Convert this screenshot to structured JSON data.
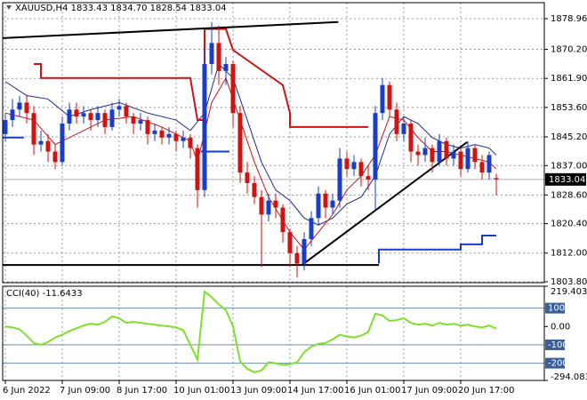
{
  "chart_data": {
    "type": "candlestick",
    "title": "XAUUSD,H4  1833.43 1834.70 1828.54 1833.04",
    "categories": [
      "6 Jun 2022",
      null,
      null,
      null,
      null,
      null,
      null,
      null,
      "7 Jun 09:00",
      null,
      null,
      null,
      null,
      null,
      null,
      null,
      "8 Jun 17:00",
      null,
      null,
      null,
      null,
      null,
      null,
      null,
      "10 Jun 01:00",
      null,
      null,
      null,
      null,
      null,
      null,
      null,
      "13 Jun 09:00",
      null,
      null,
      null,
      null,
      null,
      null,
      null,
      "14 Jun 17:00",
      null,
      null,
      null,
      null,
      null,
      null,
      null,
      "16 Jun 01:00",
      null,
      null,
      null,
      null,
      null,
      null,
      null,
      "17 Jun 09:00",
      null,
      null,
      null,
      null,
      null,
      null,
      null,
      "20 Jun 17:00",
      null,
      null,
      null,
      null,
      null
    ],
    "open": [
      1846,
      1850,
      1853,
      1855,
      1852,
      1843,
      1844,
      1841,
      1838,
      1849,
      1853,
      1851,
      1852,
      1850,
      1852,
      1848,
      1853,
      1854,
      1851,
      1849,
      1850,
      1846,
      1847,
      1845,
      1846,
      1844,
      1845,
      1842,
      1830,
      1866,
      1872,
      1864,
      1866,
      1852,
      1835,
      1832,
      1828,
      1823,
      1827,
      1825,
      1818,
      1812,
      1809,
      1816,
      1822,
      1829,
      1825,
      1827,
      1839,
      1836,
      1838,
      1834,
      1833,
      1852,
      1860,
      1853,
      1846,
      1849,
      1841,
      1840,
      1842,
      1838,
      1844,
      1839,
      1841,
      1836,
      1842,
      1838,
      1835,
      1833.43
    ],
    "high": [
      1852,
      1856,
      1857,
      1857,
      1854,
      1847,
      1846,
      1843,
      1851,
      1855,
      1855,
      1854,
      1853,
      1854,
      1853,
      1855,
      1856,
      1855,
      1852,
      1852,
      1851,
      1849,
      1848,
      1848,
      1847,
      1847,
      1846,
      1843,
      1870,
      1878,
      1877,
      1868,
      1867,
      1854,
      1838,
      1834,
      1830,
      1829,
      1829,
      1826,
      1819,
      1814,
      1818,
      1824,
      1831,
      1830,
      1829,
      1842,
      1841,
      1840,
      1839,
      1837,
      1854,
      1862,
      1861,
      1855,
      1851,
      1850,
      1843,
      1845,
      1843,
      1846,
      1845,
      1843,
      1842,
      1844,
      1843,
      1840,
      1841,
      1834.7
    ],
    "low": [
      1844,
      1848,
      1851,
      1849,
      1840,
      1841,
      1838,
      1836,
      1837,
      1847,
      1849,
      1849,
      1847,
      1848,
      1846,
      1847,
      1851,
      1849,
      1846,
      1847,
      1843,
      1844,
      1843,
      1843,
      1841,
      1842,
      1839,
      1825,
      1828,
      1863,
      1860,
      1860,
      1848,
      1832,
      1829,
      1826,
      1808,
      1821,
      1822,
      1815,
      1808,
      1805,
      1807,
      1814,
      1820,
      1822,
      1823,
      1825,
      1834,
      1834,
      1831,
      1830,
      1824,
      1850,
      1851,
      1844,
      1844,
      1838,
      1837,
      1838,
      1835,
      1837,
      1837,
      1837,
      1834,
      1835,
      1836,
      1833,
      1833,
      1828.54
    ],
    "close": [
      1850,
      1853,
      1855,
      1852,
      1843,
      1844,
      1841,
      1838,
      1849,
      1853,
      1851,
      1852,
      1850,
      1852,
      1848,
      1853,
      1854,
      1851,
      1849,
      1850,
      1846,
      1847,
      1845,
      1846,
      1844,
      1845,
      1842,
      1830,
      1866,
      1872,
      1864,
      1866,
      1852,
      1835,
      1832,
      1828,
      1823,
      1827,
      1825,
      1818,
      1812,
      1809,
      1816,
      1822,
      1829,
      1825,
      1827,
      1839,
      1836,
      1838,
      1834,
      1833,
      1852,
      1860,
      1853,
      1846,
      1849,
      1841,
      1840,
      1842,
      1838,
      1844,
      1839,
      1841,
      1836,
      1842,
      1838,
      1835,
      1840,
      1833.04
    ],
    "up_color": "#1a3cc8",
    "down_color": "#d01212",
    "ylim": [
      1803.55,
      1883.53
    ],
    "yticks": [
      1878.96,
      {
        "value": 1870.2,
        "label": "1870.20"
      },
      {
        "value": 1861.9,
        "label": "1861.90"
      },
      {
        "value": 1853.6,
        "label": "1853.60"
      },
      {
        "value": 1845.2,
        "label": "1845.20"
      },
      {
        "value": 1837,
        "label": "1837.00"
      },
      {
        "value": 1828.6,
        "label": "1828.60"
      },
      {
        "value": 1820.4,
        "label": "1820.40"
      },
      {
        "value": 1812,
        "label": "1812.00"
      },
      {
        "value": 1803.8,
        "label": "1803.80"
      }
    ],
    "grid": true,
    "overlays": [
      {
        "color": "#1a2a8a",
        "line_width": 1,
        "x": [
          0,
          3,
          6,
          9,
          12,
          16,
          20,
          24,
          26,
          28,
          30,
          32,
          34,
          36,
          38,
          40,
          42,
          44,
          46,
          48,
          50,
          52,
          54,
          56,
          58,
          60,
          62,
          64,
          66,
          68,
          69
        ],
        "values": [
          1861,
          1857,
          1856,
          1851,
          1853,
          1855,
          1852,
          1850,
          1847,
          1852,
          1866,
          1862,
          1850,
          1838,
          1830,
          1827,
          1822,
          1820,
          1822,
          1826,
          1828,
          1834,
          1846,
          1851,
          1849,
          1845,
          1843,
          1842,
          1843,
          1842,
          1840
        ]
      },
      {
        "color": "#d01212",
        "line_width": 1,
        "x": [
          0,
          4,
          7,
          10,
          14,
          18,
          22,
          26,
          27,
          29,
          31,
          33,
          35,
          37,
          40,
          42,
          44,
          46,
          48,
          50,
          52,
          54,
          56,
          58,
          60,
          62,
          64,
          66,
          68,
          69
        ],
        "values": [
          1852,
          1850,
          1843,
          1846,
          1850,
          1851,
          1848,
          1844,
          1838,
          1855,
          1862,
          1850,
          1838,
          1828,
          1818,
          1813,
          1818,
          1823,
          1830,
          1834,
          1840,
          1851,
          1850,
          1845,
          1841,
          1841,
          1840,
          1839,
          1838,
          1836
        ]
      },
      {
        "color": "#d01212",
        "line_width": 2,
        "x": [
          4,
          5,
          5,
          26,
          27,
          28,
          28,
          31,
          32,
          32,
          39,
          40,
          40,
          51
        ],
        "values": [
          1866,
          1866,
          1862,
          1862,
          1850,
          1850,
          1876,
          1876,
          1870,
          1870,
          1860,
          1852,
          1848,
          1848
        ]
      },
      {
        "color": "#1a3cc8",
        "line_width": 2,
        "x": [
          -0.4,
          2.6
        ],
        "values": [
          1845,
          1845
        ]
      },
      {
        "color": "#1a3cc8",
        "line_width": 2,
        "x": [
          27.5,
          31.5
        ],
        "values": [
          1841,
          1841
        ]
      },
      {
        "color": "#1a3cc8",
        "line_width": 2,
        "x": [
          52.5,
          52.5,
          64,
          64,
          67,
          67,
          69
        ],
        "values": [
          1809,
          1813,
          1813,
          1814.5,
          1814.5,
          1817,
          1817
        ]
      },
      {
        "color": "#000000",
        "line_width": 2,
        "x": [
          -0.4,
          46.8
        ],
        "values": [
          1873.4,
          1878
        ]
      },
      {
        "color": "#000000",
        "line_width": 2,
        "x": [
          -0.4,
          52.5
        ],
        "values": [
          1808.6,
          1808.6
        ]
      },
      {
        "color": "#000000",
        "line_width": 2,
        "x": [
          41.7,
          64.9
        ],
        "values": [
          1808.6,
          1843.7
        ]
      }
    ],
    "cci": {
      "title": "CCI(40) -11.6433",
      "color": "#7fe02a",
      "values": [
        0,
        -5,
        -15,
        -50,
        -90,
        -100,
        -85,
        -60,
        -45,
        -25,
        -10,
        5,
        15,
        10,
        25,
        55,
        45,
        20,
        25,
        20,
        15,
        10,
        5,
        0,
        -5,
        -20,
        -100,
        -180,
        190,
        160,
        120,
        90,
        0,
        -190,
        -230,
        -250,
        -240,
        -195,
        -200,
        -210,
        -205,
        -195,
        -140,
        -110,
        -95,
        -90,
        -70,
        -45,
        -55,
        -60,
        -50,
        -30,
        70,
        60,
        30,
        35,
        45,
        20,
        10,
        15,
        5,
        20,
        10,
        15,
        5,
        10,
        0,
        -5,
        5,
        -11.6433
      ],
      "ylim": [
        -294.0835,
        219.4039
      ],
      "yticks": [
        {
          "value": 219.4039,
          "label": "219.4039"
        },
        {
          "value": 0,
          "label": "0.00"
        },
        {
          "value": -294.0835,
          "label": "-294.0835"
        }
      ],
      "levels": [
        100,
        -100,
        -200
      ],
      "level_color": "#6a8fb0"
    }
  }
}
